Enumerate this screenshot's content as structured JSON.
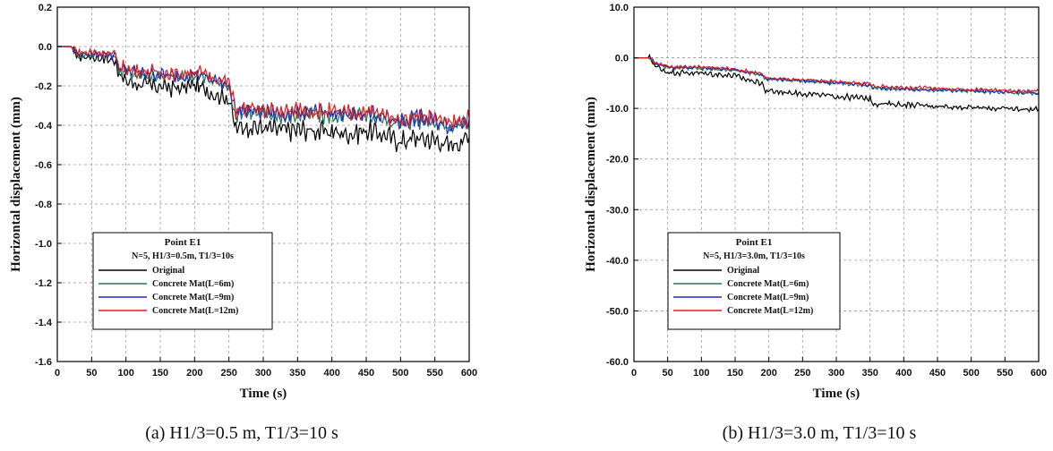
{
  "chart_data": [
    {
      "type": "line",
      "ylabel": "Horizontal displacement (mm)",
      "xlabel": "Time (s)",
      "xlim": [
        0,
        600
      ],
      "ylim": [
        -1.6,
        0.2
      ],
      "xticks": [
        "0",
        "50",
        "100",
        "150",
        "200",
        "250",
        "300",
        "350",
        "400",
        "450",
        "500",
        "550",
        "600"
      ],
      "yticks": [
        "0.2",
        "0.0",
        "-0.2",
        "-0.4",
        "-0.6",
        "-0.8",
        "-1.0",
        "-1.2",
        "-1.4",
        "-1.6"
      ],
      "grid": true,
      "legend_position": "bottom-left",
      "legend_title": "Point E1",
      "legend_subtitle": "N=5, H1/3=0.5m, T1/3=10s",
      "caption": "(a) H1/3=0.5 m, T1/3=10 s",
      "series": [
        {
          "name": "Original",
          "color": "#000000",
          "x": [
            0,
            20,
            30,
            50,
            70,
            85,
            90,
            100,
            120,
            150,
            180,
            200,
            230,
            250,
            260,
            270,
            300,
            330,
            360,
            400,
            430,
            450,
            480,
            500,
            520,
            550,
            570,
            600
          ],
          "y": [
            0.0,
            0.0,
            -0.05,
            -0.05,
            -0.06,
            -0.07,
            -0.15,
            -0.17,
            -0.19,
            -0.2,
            -0.21,
            -0.19,
            -0.24,
            -0.26,
            -0.42,
            -0.4,
            -0.41,
            -0.42,
            -0.42,
            -0.43,
            -0.44,
            -0.42,
            -0.45,
            -0.48,
            -0.46,
            -0.47,
            -0.5,
            -0.46
          ]
        },
        {
          "name": "Concrete Mat(L=6m)",
          "color": "#1a7a5a",
          "x": [
            0,
            20,
            30,
            50,
            70,
            85,
            90,
            100,
            120,
            150,
            180,
            200,
            230,
            250,
            260,
            270,
            300,
            330,
            360,
            400,
            430,
            450,
            480,
            500,
            520,
            550,
            570,
            600
          ],
          "y": [
            0.0,
            0.0,
            -0.04,
            -0.04,
            -0.04,
            -0.05,
            -0.12,
            -0.13,
            -0.14,
            -0.15,
            -0.16,
            -0.14,
            -0.18,
            -0.2,
            -0.34,
            -0.33,
            -0.34,
            -0.35,
            -0.34,
            -0.35,
            -0.36,
            -0.34,
            -0.37,
            -0.39,
            -0.37,
            -0.38,
            -0.41,
            -0.38
          ]
        },
        {
          "name": "Concrete Mat(L=9m)",
          "color": "#1a2fbf",
          "x": [
            0,
            20,
            30,
            50,
            70,
            85,
            90,
            100,
            120,
            150,
            180,
            200,
            230,
            250,
            260,
            270,
            300,
            330,
            360,
            400,
            430,
            450,
            480,
            500,
            520,
            550,
            570,
            600
          ],
          "y": [
            0.0,
            0.0,
            -0.035,
            -0.035,
            -0.035,
            -0.045,
            -0.11,
            -0.12,
            -0.13,
            -0.14,
            -0.15,
            -0.13,
            -0.17,
            -0.19,
            -0.33,
            -0.32,
            -0.33,
            -0.34,
            -0.33,
            -0.34,
            -0.35,
            -0.33,
            -0.36,
            -0.38,
            -0.36,
            -0.37,
            -0.4,
            -0.37
          ]
        },
        {
          "name": "Concrete Mat(L=12m)",
          "color": "#e01a1a",
          "x": [
            0,
            20,
            30,
            50,
            70,
            85,
            90,
            100,
            120,
            150,
            180,
            200,
            230,
            250,
            260,
            270,
            300,
            330,
            360,
            400,
            430,
            450,
            480,
            500,
            520,
            550,
            570,
            600
          ],
          "y": [
            0.0,
            0.0,
            -0.03,
            -0.03,
            -0.03,
            -0.04,
            -0.1,
            -0.11,
            -0.12,
            -0.13,
            -0.14,
            -0.12,
            -0.16,
            -0.18,
            -0.32,
            -0.31,
            -0.32,
            -0.33,
            -0.32,
            -0.33,
            -0.34,
            -0.32,
            -0.35,
            -0.37,
            -0.35,
            -0.36,
            -0.39,
            -0.36
          ]
        }
      ]
    },
    {
      "type": "line",
      "ylabel": "Horizontal displacement (mm)",
      "xlabel": "Time (s)",
      "xlim": [
        0,
        600
      ],
      "ylim": [
        -60,
        10
      ],
      "xticks": [
        "0",
        "50",
        "100",
        "150",
        "200",
        "250",
        "300",
        "350",
        "400",
        "450",
        "500",
        "550",
        "600"
      ],
      "yticks": [
        "10.0",
        "0.0",
        "-10.0",
        "-20.0",
        "-30.0",
        "-40.0",
        "-50.0",
        "-60.0"
      ],
      "grid": true,
      "legend_position": "bottom-left",
      "legend_title": "Point E1",
      "legend_subtitle": "N=5, H1/3=3.0m, T1/3=10s",
      "caption": "(b) H1/3=3.0 m, T1/3=10 s",
      "series": [
        {
          "name": "Original",
          "color": "#000000",
          "x": [
            0,
            25,
            30,
            50,
            100,
            150,
            160,
            190,
            195,
            250,
            300,
            350,
            355,
            400,
            450,
            500,
            550,
            600
          ],
          "y": [
            0.0,
            0.0,
            -1.5,
            -2.8,
            -3.0,
            -3.5,
            -4.0,
            -5.0,
            -6.5,
            -7.0,
            -7.6,
            -8.0,
            -9.0,
            -9.2,
            -9.5,
            -9.8,
            -10.0,
            -10.2
          ]
        },
        {
          "name": "Concrete Mat(L=6m)",
          "color": "#1a7a5a",
          "x": [
            0,
            25,
            30,
            50,
            100,
            150,
            160,
            190,
            195,
            250,
            300,
            350,
            355,
            400,
            450,
            500,
            550,
            600
          ],
          "y": [
            0.0,
            0.0,
            -1.0,
            -1.9,
            -2.1,
            -2.4,
            -2.7,
            -3.4,
            -4.2,
            -4.6,
            -5.0,
            -5.4,
            -6.0,
            -6.2,
            -6.4,
            -6.6,
            -6.8,
            -7.0
          ]
        },
        {
          "name": "Concrete Mat(L=9m)",
          "color": "#1a2fbf",
          "x": [
            0,
            25,
            30,
            50,
            100,
            150,
            160,
            190,
            195,
            250,
            300,
            350,
            355,
            400,
            450,
            500,
            550,
            600
          ],
          "y": [
            0.0,
            0.0,
            -0.95,
            -1.8,
            -2.0,
            -2.3,
            -2.6,
            -3.3,
            -4.1,
            -4.5,
            -4.9,
            -5.3,
            -5.9,
            -6.1,
            -6.3,
            -6.5,
            -6.7,
            -6.9
          ]
        },
        {
          "name": "Concrete Mat(L=12m)",
          "color": "#e01a1a",
          "x": [
            0,
            25,
            30,
            50,
            100,
            150,
            160,
            190,
            195,
            250,
            300,
            350,
            355,
            400,
            450,
            500,
            550,
            600
          ],
          "y": [
            0.0,
            0.0,
            -0.9,
            -1.7,
            -1.9,
            -2.2,
            -2.5,
            -3.1,
            -3.9,
            -4.3,
            -4.7,
            -5.1,
            -5.6,
            -5.8,
            -6.0,
            -6.2,
            -6.4,
            -6.6
          ]
        }
      ]
    }
  ]
}
